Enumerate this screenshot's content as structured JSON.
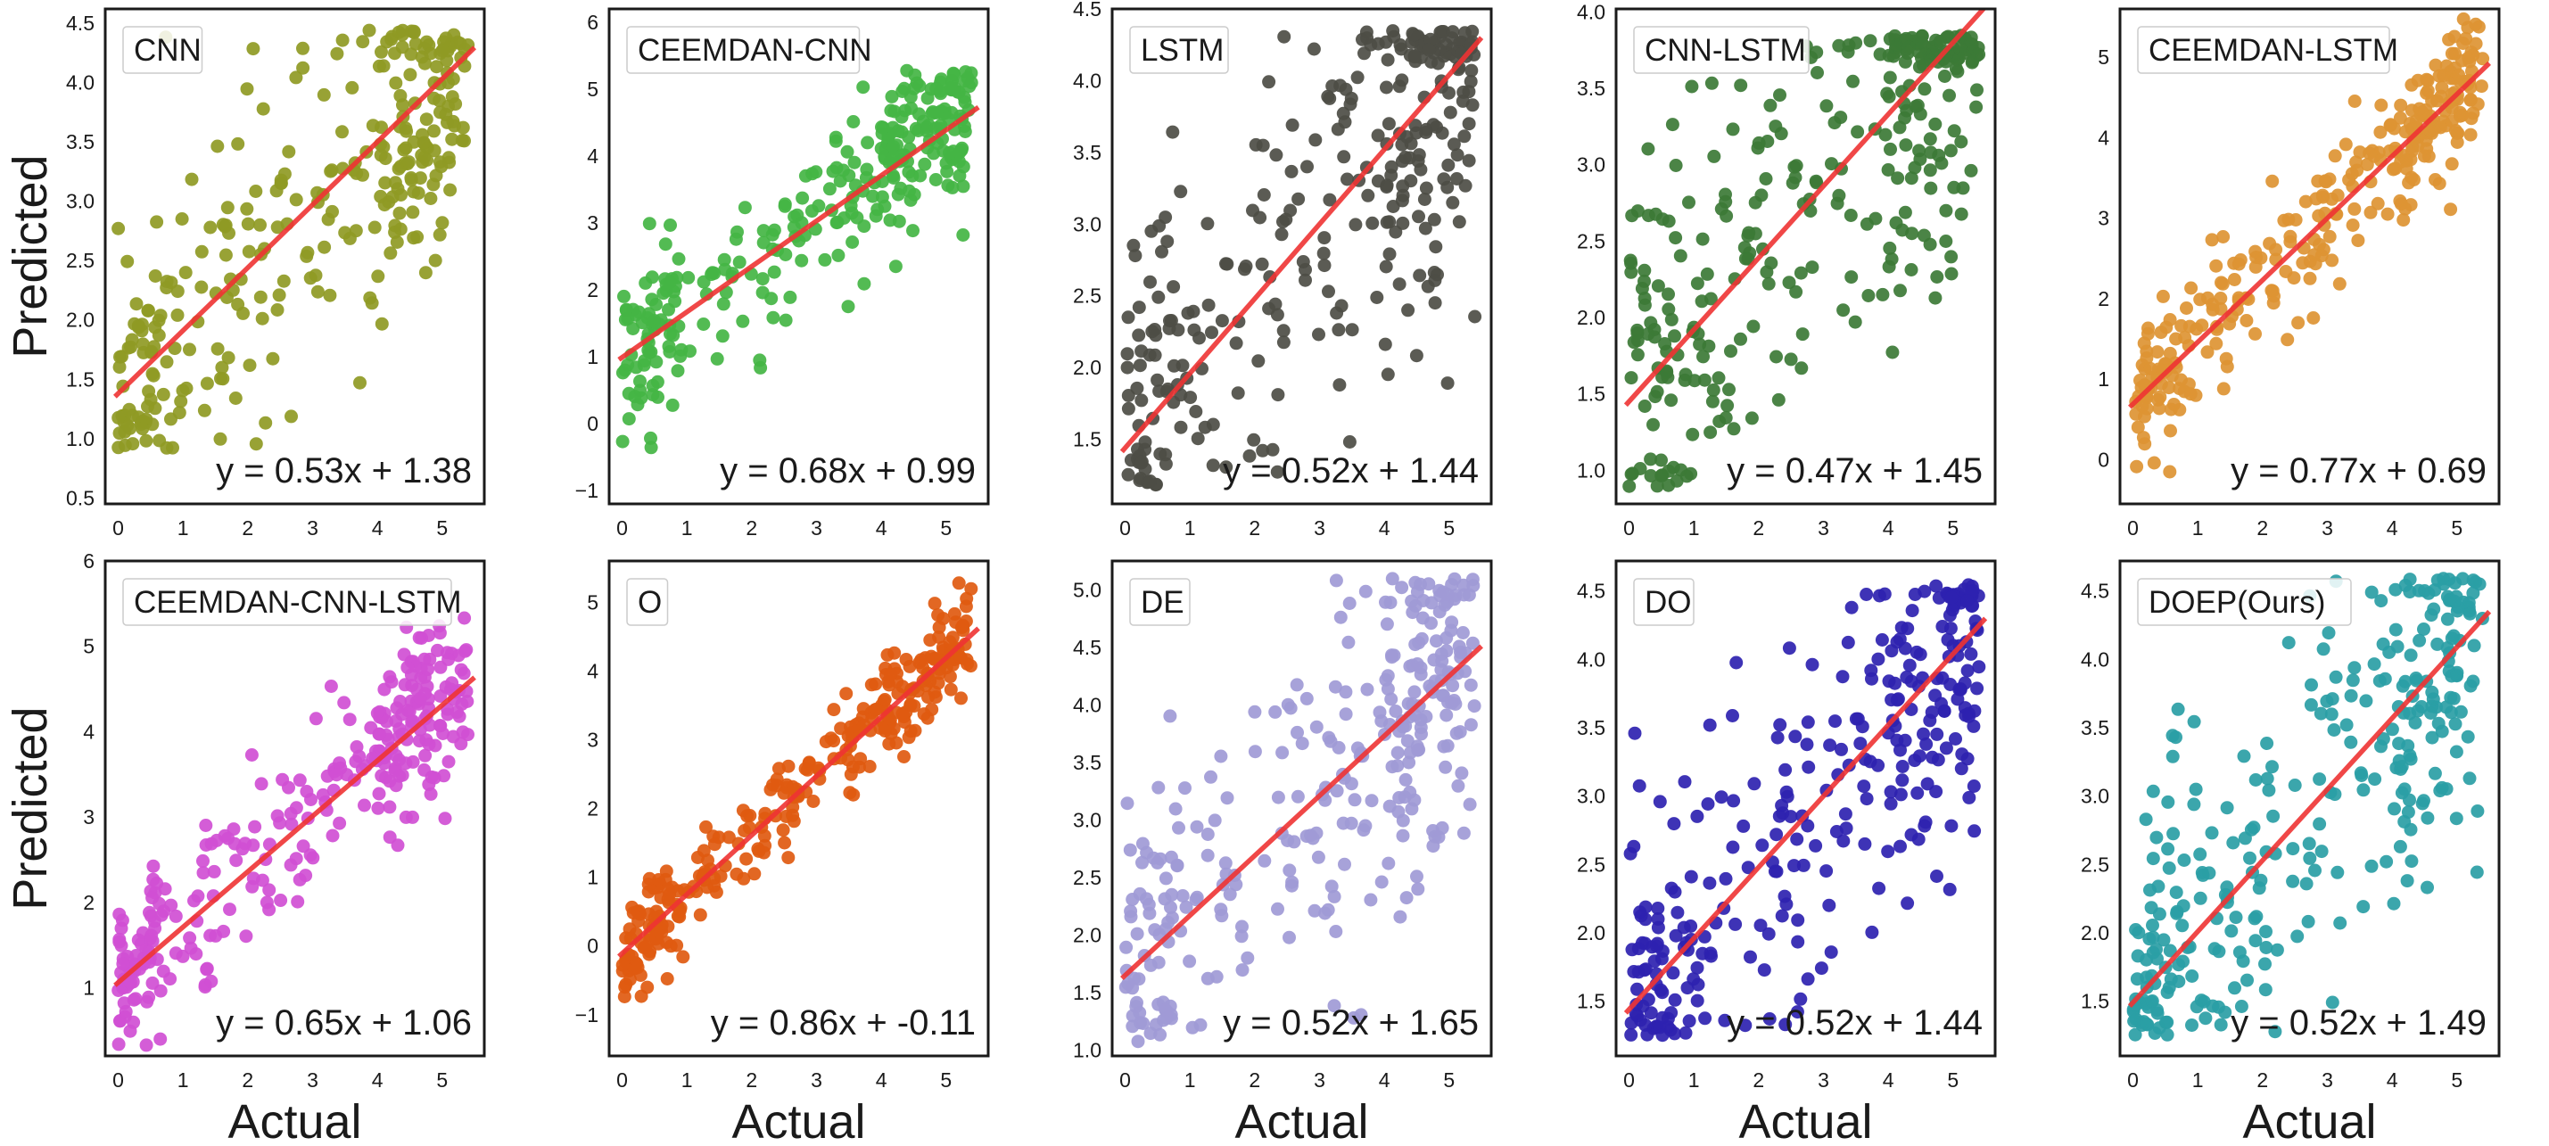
{
  "figure": {
    "ylabel": "Predicted",
    "xlabel": "Actual",
    "fit_line_color": "#ee3333"
  },
  "chart_data": [
    {
      "type": "scatter",
      "title": "CNN",
      "color": "#8f9a24",
      "equation": "y = 0.53x + 1.38",
      "slope": 0.53,
      "intercept": 1.38,
      "xlim": [
        -0.2,
        5.65
      ],
      "ylim": [
        0.45,
        4.62
      ],
      "xticks": [
        0,
        1,
        2,
        3,
        4,
        5
      ],
      "yticks": [
        0.5,
        1.0,
        1.5,
        2.0,
        2.5,
        3.0,
        3.5,
        4.0,
        4.5
      ],
      "ytick_labels": [
        "0.5",
        "1.0",
        "1.5",
        "2.0",
        "2.5",
        "3.0",
        "3.5",
        "4.0",
        "4.5"
      ],
      "ymin_clip": 0.9,
      "ymax_clip": 4.45,
      "noise": 0.7,
      "seed": 11
    },
    {
      "type": "scatter",
      "title": "CEEMDAN-CNN",
      "color": "#44b544",
      "equation": "y = 0.68x + 0.99",
      "slope": 0.68,
      "intercept": 0.99,
      "xlim": [
        -0.2,
        5.65
      ],
      "ylim": [
        -1.2,
        6.2
      ],
      "xticks": [
        0,
        1,
        2,
        3,
        4,
        5
      ],
      "yticks": [
        -1,
        0,
        1,
        2,
        3,
        4,
        5,
        6
      ],
      "ytick_labels": [
        "−1",
        "0",
        "1",
        "2",
        "3",
        "4",
        "5",
        "6"
      ],
      "ymin_clip": -0.7,
      "ymax_clip": 5.3,
      "noise": 0.6,
      "seed": 23
    },
    {
      "type": "scatter",
      "title": "LSTM",
      "color": "#4d4d45",
      "equation": "y = 0.52x + 1.44",
      "slope": 0.52,
      "intercept": 1.44,
      "xlim": [
        -0.2,
        5.65
      ],
      "ylim": [
        1.05,
        4.5
      ],
      "xticks": [
        0,
        1,
        2,
        3,
        4,
        5
      ],
      "yticks": [
        1.5,
        2.0,
        2.5,
        3.0,
        3.5,
        4.0,
        4.5
      ],
      "ytick_labels": [
        "1.5",
        "2.0",
        "2.5",
        "3.0",
        "3.5",
        "4.0",
        "4.5"
      ],
      "ymin_clip": 1.18,
      "ymax_clip": 4.35,
      "noise": 0.8,
      "seed": 37
    },
    {
      "type": "scatter",
      "title": "CNN-LSTM",
      "color": "#3c7a36",
      "equation": "y = 0.47x + 1.45",
      "slope": 0.47,
      "intercept": 1.45,
      "xlim": [
        -0.2,
        5.65
      ],
      "ylim": [
        0.78,
        4.02
      ],
      "xticks": [
        0,
        1,
        2,
        3,
        4,
        5
      ],
      "yticks": [
        1.0,
        1.5,
        2.0,
        2.5,
        3.0,
        3.5,
        4.0
      ],
      "ytick_labels": [
        "1.0",
        "1.5",
        "2.0",
        "2.5",
        "3.0",
        "3.5",
        "4.0"
      ],
      "ymin_clip": 0.85,
      "ymax_clip": 3.85,
      "noise": 0.75,
      "seed": 41
    },
    {
      "type": "scatter",
      "title": "CEEMDAN-LSTM",
      "color": "#dd9433",
      "equation": "y = 0.77x + 0.69",
      "slope": 0.77,
      "intercept": 0.69,
      "xlim": [
        -0.2,
        5.65
      ],
      "ylim": [
        -0.55,
        5.6
      ],
      "xticks": [
        0,
        1,
        2,
        3,
        4,
        5
      ],
      "yticks": [
        0,
        1,
        2,
        3,
        4,
        5
      ],
      "ytick_labels": [
        "0",
        "1",
        "2",
        "3",
        "4",
        "5"
      ],
      "ymin_clip": -0.5,
      "ymax_clip": 5.5,
      "noise": 0.45,
      "seed": 53
    },
    {
      "type": "scatter",
      "title": "CEEMDAN-CNN-LSTM",
      "color": "#d04fd4",
      "equation": "y = 0.65x + 1.06",
      "slope": 0.65,
      "intercept": 1.06,
      "xlim": [
        -0.2,
        5.65
      ],
      "ylim": [
        0.2,
        6.0
      ],
      "xticks": [
        0,
        1,
        2,
        3,
        4,
        5
      ],
      "yticks": [
        1,
        2,
        3,
        4,
        5,
        6
      ],
      "ytick_labels": [
        "1",
        "2",
        "3",
        "4",
        "5",
        "6"
      ],
      "ymin_clip": 0.3,
      "ymax_clip": 5.7,
      "noise": 0.5,
      "seed": 67
    },
    {
      "type": "scatter",
      "title": "O",
      "color": "#e05a10",
      "equation": "y = 0.86x + -0.11",
      "slope": 0.86,
      "intercept": -0.11,
      "xlim": [
        -0.2,
        5.65
      ],
      "ylim": [
        -1.6,
        5.6
      ],
      "xticks": [
        0,
        1,
        2,
        3,
        4,
        5
      ],
      "yticks": [
        -1,
        0,
        1,
        2,
        3,
        4,
        5
      ],
      "ytick_labels": [
        "−1",
        "0",
        "1",
        "2",
        "3",
        "4",
        "5"
      ],
      "ymin_clip": -1.3,
      "ymax_clip": 5.3,
      "noise": 0.4,
      "seed": 71
    },
    {
      "type": "scatter",
      "title": "DE",
      "color": "#9f9ad6",
      "equation": "y = 0.52x + 1.65",
      "slope": 0.52,
      "intercept": 1.65,
      "xlim": [
        -0.2,
        5.65
      ],
      "ylim": [
        0.95,
        5.25
      ],
      "xticks": [
        0,
        1,
        2,
        3,
        4,
        5
      ],
      "yticks": [
        1.0,
        1.5,
        2.0,
        2.5,
        3.0,
        3.5,
        4.0,
        4.5,
        5.0
      ],
      "ytick_labels": [
        "1.0",
        "1.5",
        "2.0",
        "2.5",
        "3.0",
        "3.5",
        "4.0",
        "4.5",
        "5.0"
      ],
      "ymin_clip": 1.05,
      "ymax_clip": 5.1,
      "noise": 0.75,
      "seed": 83
    },
    {
      "type": "scatter",
      "title": "DO",
      "color": "#2e22b0",
      "equation": "y = 0.52x + 1.44",
      "slope": 0.52,
      "intercept": 1.44,
      "xlim": [
        -0.2,
        5.65
      ],
      "ylim": [
        1.1,
        4.72
      ],
      "xticks": [
        0,
        1,
        2,
        3,
        4,
        5
      ],
      "yticks": [
        1.5,
        2.0,
        2.5,
        3.0,
        3.5,
        4.0,
        4.5
      ],
      "ytick_labels": [
        "1.5",
        "2.0",
        "2.5",
        "3.0",
        "3.5",
        "4.0",
        "4.5"
      ],
      "ymin_clip": 1.25,
      "ymax_clip": 4.55,
      "noise": 0.7,
      "seed": 97
    },
    {
      "type": "scatter",
      "title": "DOEP(Ours)",
      "color": "#2a9ea5",
      "equation": "y = 0.52x + 1.49",
      "slope": 0.52,
      "intercept": 1.49,
      "xlim": [
        -0.2,
        5.65
      ],
      "ylim": [
        1.1,
        4.72
      ],
      "xticks": [
        0,
        1,
        2,
        3,
        4,
        5
      ],
      "yticks": [
        1.5,
        2.0,
        2.5,
        3.0,
        3.5,
        4.0,
        4.5
      ],
      "ytick_labels": [
        "1.5",
        "2.0",
        "2.5",
        "3.0",
        "3.5",
        "4.0",
        "4.5"
      ],
      "ymin_clip": 1.25,
      "ymax_clip": 4.6,
      "noise": 0.7,
      "seed": 101
    }
  ]
}
